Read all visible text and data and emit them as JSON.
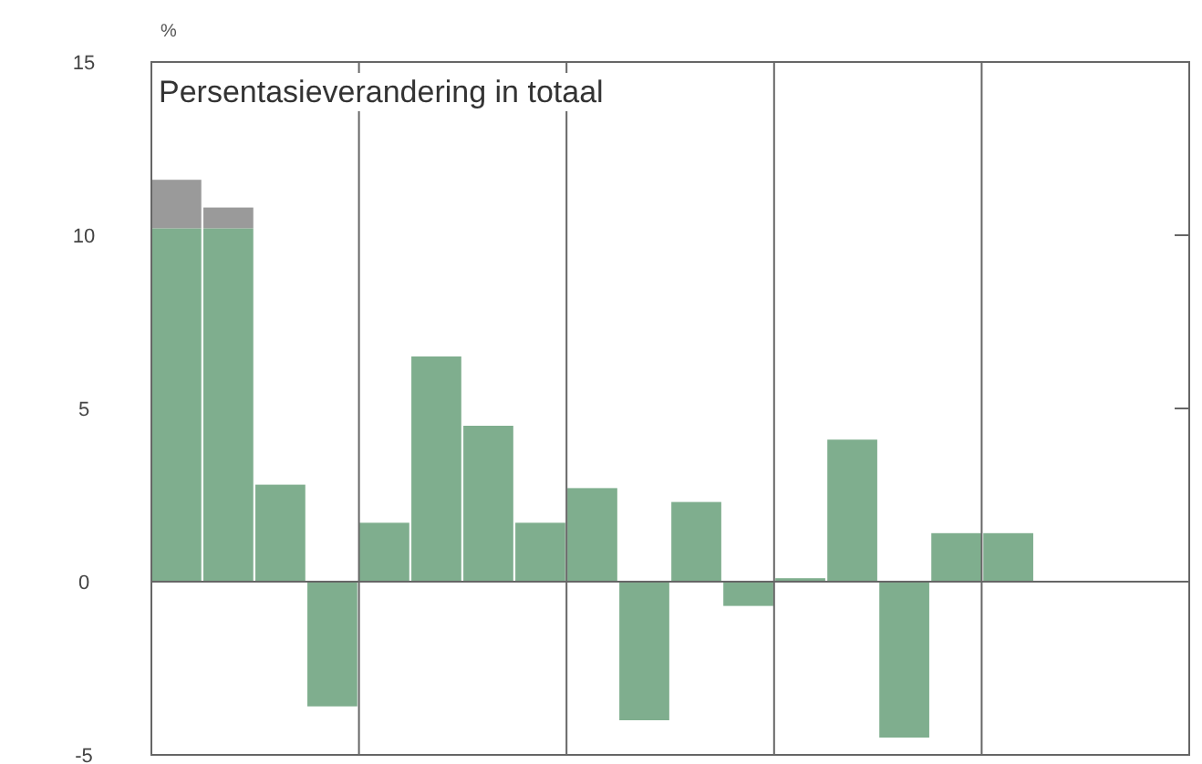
{
  "chart_data": {
    "type": "bar",
    "title": "Persentasieverandering in totaal",
    "ylabel": "%",
    "stacked": true,
    "categories": [
      null,
      null,
      null,
      null,
      null,
      null,
      null,
      null,
      null,
      null,
      null,
      null,
      null,
      null,
      null,
      null,
      null,
      null,
      null,
      null
    ],
    "series": [
      {
        "color": "#7fae8e",
        "values": [
          10.2,
          10.2,
          2.8,
          -3.6,
          1.7,
          6.5,
          4.5,
          1.7,
          2.7,
          -4.0,
          2.3,
          -0.7,
          0.1,
          4.1,
          -4.5,
          1.4,
          1.4,
          null,
          null,
          null
        ]
      },
      {
        "color": "#9a9a9a",
        "values": [
          1.4,
          0.6,
          null,
          null,
          null,
          null,
          null,
          null,
          null,
          null,
          null,
          null,
          null,
          null,
          null,
          null,
          null,
          null,
          null,
          null
        ]
      }
    ],
    "ylim": [
      -5,
      15
    ],
    "yticks": [
      -5,
      0,
      5,
      10,
      15
    ]
  }
}
